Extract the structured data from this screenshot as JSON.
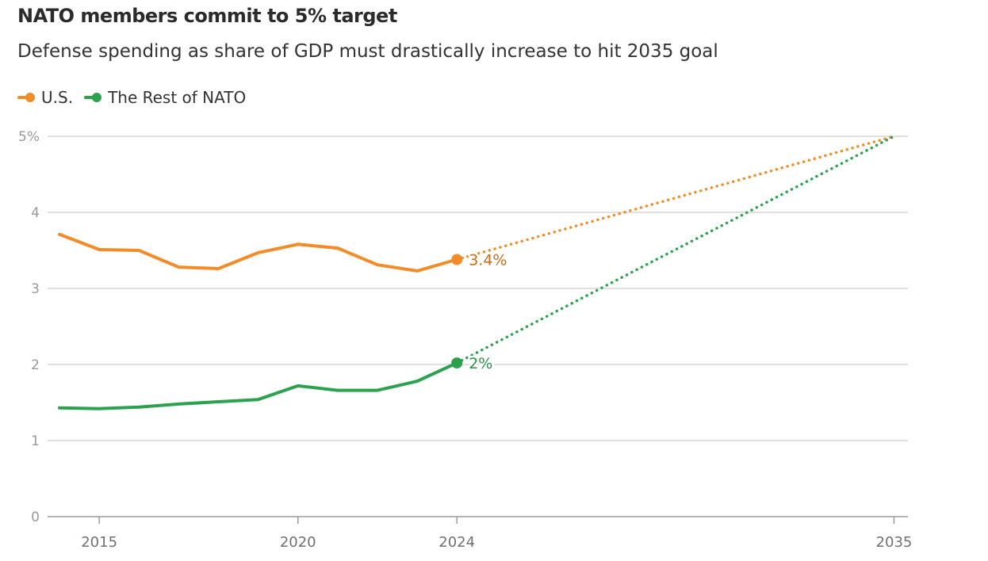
{
  "chart_data": {
    "type": "line",
    "title": "NATO members commit to 5% target",
    "subtitle": "Defense spending as share of GDP must drastically increase to hit 2035 goal",
    "xlabel": "",
    "ylabel": "",
    "xlim": [
      2013.7,
      2035.35
    ],
    "ylim": [
      0,
      5
    ],
    "yticks": [
      0,
      1,
      2,
      3,
      4,
      5
    ],
    "ytick_labels": [
      "0",
      "1",
      "2",
      "3",
      "4",
      "5%"
    ],
    "xticks": [
      2015,
      2020,
      2024,
      2035
    ],
    "xtick_labels": [
      "2015",
      "2020",
      "2024",
      "2035"
    ],
    "grid": true,
    "legend": "top-left",
    "series": [
      {
        "name": "U.S.",
        "color": "#f28c28",
        "label_color": "#c86a10",
        "x": [
          2014,
          2015,
          2016,
          2017,
          2018,
          2019,
          2020,
          2021,
          2022,
          2023,
          2024
        ],
        "values": [
          3.71,
          3.51,
          3.5,
          3.28,
          3.26,
          3.47,
          3.58,
          3.53,
          3.31,
          3.23,
          3.38
        ],
        "end_label": "3.4%",
        "projection": {
          "x": [
            2024,
            2035
          ],
          "values": [
            3.38,
            5.0
          ]
        }
      },
      {
        "name": "The Rest of NATO",
        "color": "#2ca24f",
        "label_color": "#2a8f45",
        "x": [
          2014,
          2015,
          2016,
          2017,
          2018,
          2019,
          2020,
          2021,
          2022,
          2023,
          2024
        ],
        "values": [
          1.43,
          1.42,
          1.44,
          1.48,
          1.51,
          1.54,
          1.72,
          1.66,
          1.66,
          1.78,
          2.02
        ],
        "end_label": "2%",
        "projection": {
          "x": [
            2024,
            2035
          ],
          "values": [
            2.02,
            5.0
          ]
        }
      }
    ]
  }
}
